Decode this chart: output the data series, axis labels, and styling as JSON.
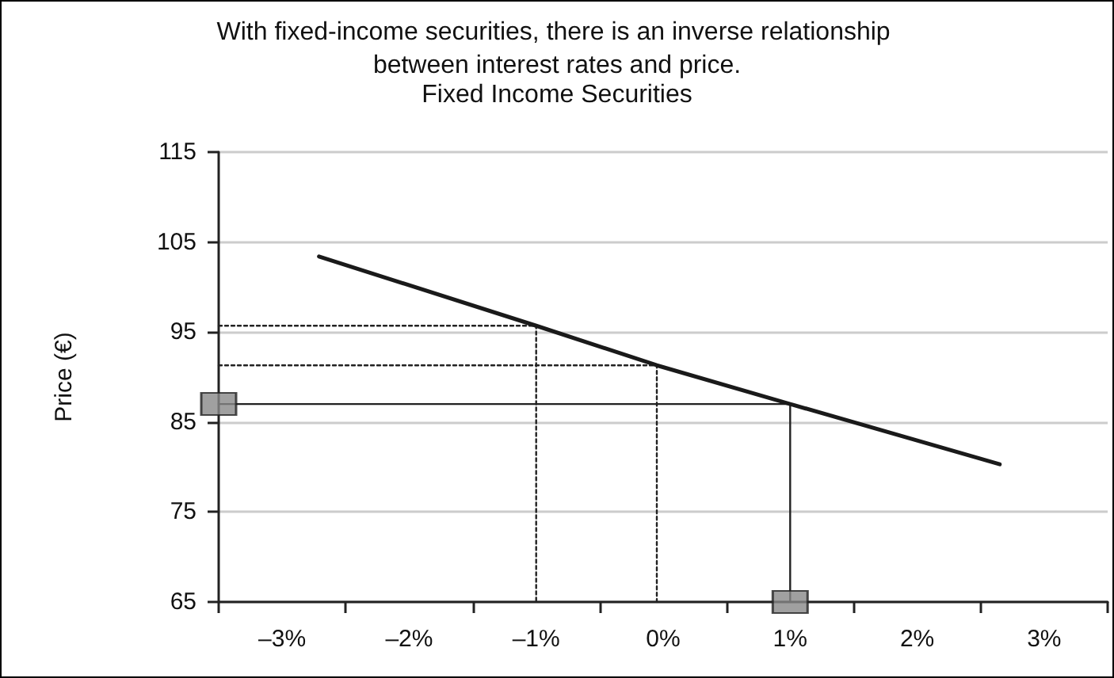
{
  "chart_data": {
    "type": "line",
    "title": "Fixed Income Securities",
    "subtitle": "With fixed-income securities, there is an inverse relationship between interest rates and price.",
    "ylabel": "Price (€)",
    "xlim": [
      -3.5,
      3.5
    ],
    "xticks": [
      {
        "value": -3.5,
        "label": null
      },
      {
        "value": -3,
        "label": "–3%"
      },
      {
        "value": -2.5,
        "label": null
      },
      {
        "value": -2,
        "label": "–2%"
      },
      {
        "value": -1.5,
        "label": null
      },
      {
        "value": -1,
        "label": "–1%"
      },
      {
        "value": -0.5,
        "label": null
      },
      {
        "value": 0,
        "label": "0%"
      },
      {
        "value": 0.5,
        "label": null
      },
      {
        "value": 1,
        "label": "1%"
      },
      {
        "value": 1.5,
        "label": null
      },
      {
        "value": 2,
        "label": "2%"
      },
      {
        "value": 2.5,
        "label": null
      },
      {
        "value": 3,
        "label": "3%"
      },
      {
        "value": 3.5,
        "label": null
      }
    ],
    "ylim": [
      65,
      115
    ],
    "yticks": [
      65,
      75,
      85,
      95,
      105,
      115
    ],
    "grid": "y",
    "marker": "none",
    "line_style": "solid",
    "series": [
      {
        "color": "#1a1a1a",
        "x": [
          -2.71,
          -1,
          -0.05,
          1,
          2.65
        ],
        "values": [
          103.4,
          95.7,
          91.3,
          87,
          80.3
        ]
      },
      {
        "type": "line",
        "color": "#222222",
        "line_style": "dotted",
        "x": [
          -3.5,
          -1,
          -1
        ],
        "values": [
          95.7,
          95.7,
          65
        ]
      },
      {
        "type": "line",
        "color": "#222222",
        "line_style": "dotted",
        "x": [
          -3.5,
          -0.05,
          -0.05
        ],
        "values": [
          91.3,
          91.3,
          65
        ]
      },
      {
        "type": "line",
        "color": "#222222",
        "line_style": "solid",
        "x": [
          -3.5,
          1,
          1
        ],
        "values": [
          87,
          87,
          65
        ]
      },
      {
        "type": "scatter",
        "color": "#888888",
        "marker": "square",
        "x": [
          -3.5,
          1
        ],
        "values": [
          87,
          65
        ]
      }
    ]
  }
}
